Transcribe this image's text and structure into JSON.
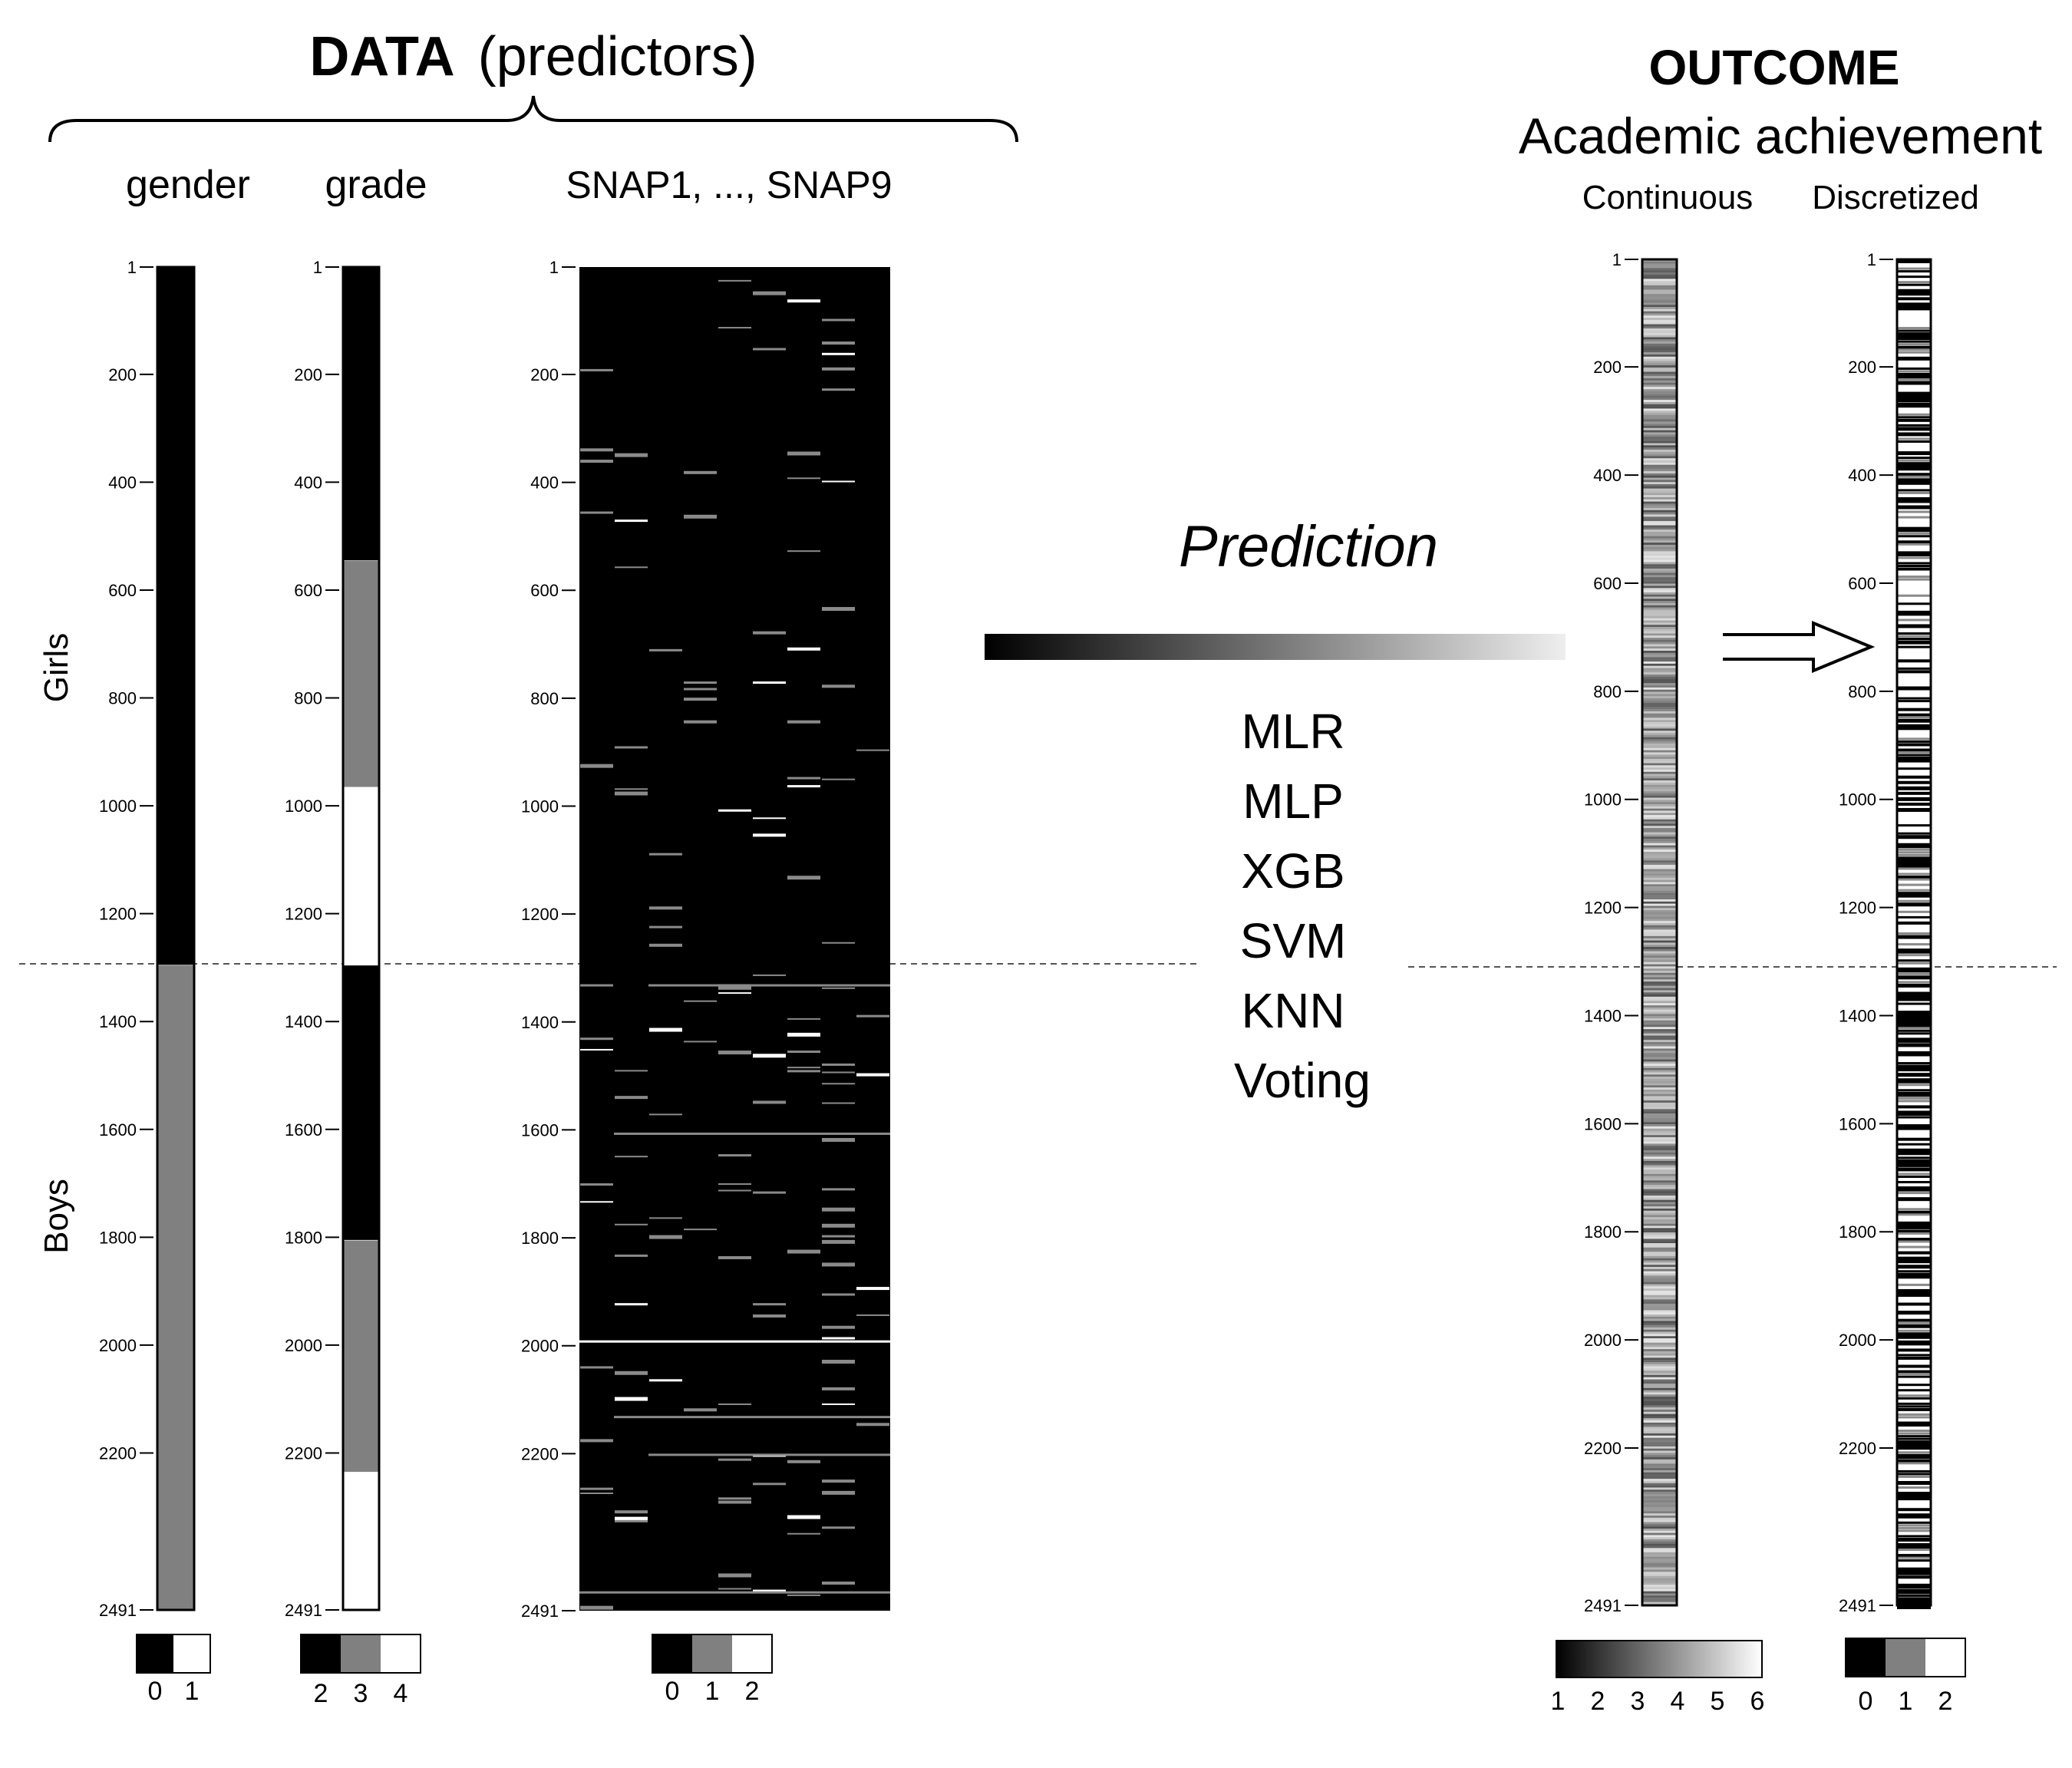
{
  "header": {
    "data_title_bold": "DATA",
    "data_title_rest": "(predictors)",
    "outcome_title": "OUTCOME",
    "outcome_subtitle": "Academic achievement"
  },
  "columns": {
    "gender": "gender",
    "grade": "grade",
    "snap": "SNAP1, ..., SNAP9",
    "continuous": "Continuous",
    "discretized": "Discretized"
  },
  "groups": {
    "girls": "Girls",
    "boys": "Boys"
  },
  "middle": {
    "prediction": "Prediction",
    "methods": [
      "MLR",
      "MLP",
      "XGB",
      "SVM",
      "KNN",
      "Voting"
    ]
  },
  "axis": {
    "ticks": [
      "1",
      "200",
      "400",
      "600",
      "800",
      "1000",
      "1200",
      "1400",
      "1600",
      "1800",
      "2000",
      "2200",
      "2491"
    ],
    "tick_values": [
      1,
      200,
      400,
      600,
      800,
      1000,
      1200,
      1400,
      1600,
      1800,
      2000,
      2200,
      2491
    ],
    "range": [
      1,
      2491
    ],
    "girls_boys_split": 1295
  },
  "legends": {
    "gender": [
      "0",
      "1"
    ],
    "grade": [
      "2",
      "3",
      "4"
    ],
    "snap": [
      "0",
      "1",
      "2"
    ],
    "continuous": [
      "1",
      "2",
      "3",
      "4",
      "5",
      "6"
    ],
    "discretized": [
      "0",
      "1",
      "2"
    ]
  },
  "colors": {
    "black": "#000000",
    "gray": "#808080",
    "white": "#ffffff"
  },
  "chart_data": {
    "type": "heatmap",
    "n_rows": 2491,
    "gender_segments": [
      {
        "from": 1,
        "to": 1295,
        "value": 0
      },
      {
        "from": 1296,
        "to": 2491,
        "value": 1
      }
    ],
    "grade_segments": [
      {
        "from": 1,
        "to": 545,
        "value": 2
      },
      {
        "from": 546,
        "to": 965,
        "value": 3
      },
      {
        "from": 966,
        "to": 1295,
        "value": 4
      },
      {
        "from": 1296,
        "to": 1805,
        "value": 2
      },
      {
        "from": 1806,
        "to": 2235,
        "value": 3
      },
      {
        "from": 2236,
        "to": 2491,
        "value": 4
      }
    ]
  }
}
